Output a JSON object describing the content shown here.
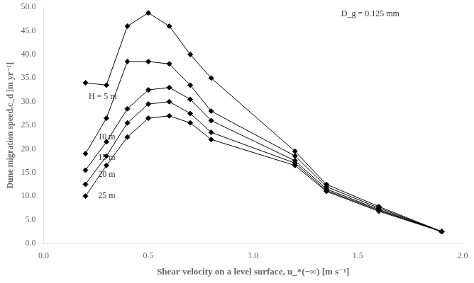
{
  "chart_data": {
    "type": "line",
    "xlabel": "Shear velocity on a level surface, u_*(−∞) [m s⁻¹]",
    "ylabel": "Dune migration speed,c_d [m yr⁻¹]",
    "xlim": [
      0.0,
      2.0
    ],
    "ylim": [
      0.0,
      50.0
    ],
    "xticks": [
      {
        "value": 0.0,
        "label": "0.0"
      },
      0.5,
      {
        "value": 1.0,
        "label": "1.0"
      },
      1.5,
      {
        "value": 2.0,
        "label": "2.0"
      }
    ],
    "yticks": [
      {
        "value": 0.0,
        "label": "0.0"
      },
      {
        "value": 5.0,
        "label": "5.0"
      },
      {
        "value": 10.0,
        "label": "10.0"
      },
      {
        "value": 15.0,
        "label": "15.0"
      },
      {
        "value": 20.0,
        "label": "20.0"
      },
      {
        "value": 25.0,
        "label": "25.0"
      },
      {
        "value": 30.0,
        "label": "30.0"
      },
      {
        "value": 35.0,
        "label": "35.0"
      },
      {
        "value": 40.0,
        "label": "40.0"
      },
      {
        "value": 45.0,
        "label": "45.0"
      },
      {
        "value": 50.0,
        "label": "50.0"
      }
    ],
    "grid": false,
    "series": [
      {
        "color": "black",
        "marker": "diamond",
        "line_style": "solid",
        "x": [
          0.2,
          0.3,
          0.4,
          0.5,
          0.6,
          0.7,
          0.8,
          1.2,
          1.35,
          1.6,
          1.9
        ],
        "values": [
          34.0,
          33.5,
          46.0,
          48.8,
          46.0,
          40.0,
          35.0,
          19.5,
          12.5,
          7.8,
          2.5
        ]
      },
      {
        "color": "black",
        "marker": "diamond",
        "line_style": "solid",
        "x": [
          0.2,
          0.3,
          0.4,
          0.5,
          0.6,
          0.7,
          0.8,
          1.2,
          1.35,
          1.6,
          1.9
        ],
        "values": [
          19.0,
          26.5,
          38.5,
          38.5,
          38.0,
          33.5,
          28.0,
          18.5,
          12.0,
          7.5,
          2.5
        ]
      },
      {
        "color": "black",
        "marker": "diamond",
        "line_style": "solid",
        "x": [
          0.2,
          0.3,
          0.4,
          0.5,
          0.6,
          0.7,
          0.8,
          1.2,
          1.35,
          1.6,
          1.9
        ],
        "values": [
          15.5,
          21.5,
          28.5,
          32.5,
          33.0,
          30.5,
          26.0,
          17.5,
          11.5,
          7.2,
          2.5
        ]
      },
      {
        "color": "black",
        "marker": "diamond",
        "line_style": "solid",
        "x": [
          0.2,
          0.3,
          0.4,
          0.5,
          0.6,
          0.7,
          0.8,
          1.2,
          1.35,
          1.6,
          1.9
        ],
        "values": [
          12.5,
          18.5,
          25.5,
          29.5,
          30.0,
          27.5,
          23.5,
          17.0,
          11.2,
          7.0,
          2.5
        ]
      },
      {
        "color": "black",
        "marker": "diamond",
        "line_style": "solid",
        "x": [
          0.2,
          0.3,
          0.4,
          0.5,
          0.6,
          0.7,
          0.8,
          1.2,
          1.35,
          1.6,
          1.9
        ],
        "values": [
          10.0,
          16.5,
          22.5,
          26.5,
          27.0,
          25.5,
          22.0,
          16.5,
          11.0,
          6.8,
          2.5
        ]
      }
    ],
    "annotations": [
      {
        "text": "H = 5 m",
        "x": 0.215,
        "y": 31.0
      },
      {
        "text": "10 m",
        "x": 0.26,
        "y": 22.5
      },
      {
        "text": "15 m",
        "x": 0.26,
        "y": 18.2
      },
      {
        "text": "20 m",
        "x": 0.26,
        "y": 14.5
      },
      {
        "text": "25 m",
        "x": 0.26,
        "y": 10.0
      },
      {
        "text": "D_g = 0.125 mm",
        "x": 1.42,
        "y": 48.5
      }
    ]
  }
}
